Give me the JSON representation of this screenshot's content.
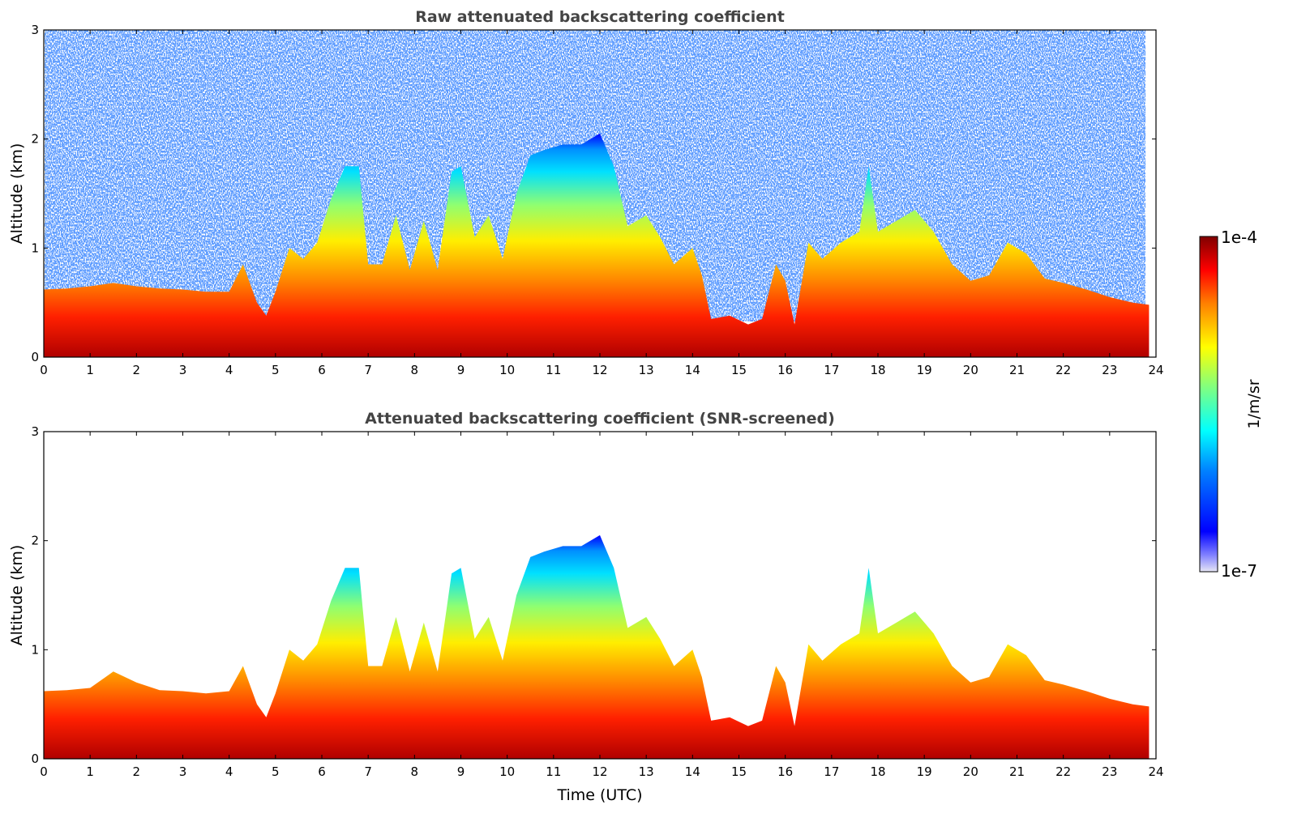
{
  "chart_data": [
    {
      "type": "heatmap",
      "title": "Raw attenuated backscattering coefficient",
      "xlabel": "",
      "ylabel": "Altitude (km)",
      "xlim": [
        0,
        24
      ],
      "ylim": [
        0,
        3
      ],
      "xticks": [
        "0",
        "1",
        "2",
        "3",
        "4",
        "5",
        "6",
        "7",
        "8",
        "9",
        "10",
        "11",
        "12",
        "13",
        "14",
        "15",
        "16",
        "17",
        "18",
        "19",
        "20",
        "21",
        "22",
        "23",
        "24"
      ],
      "yticks": [
        "0",
        "1",
        "2",
        "3"
      ],
      "layer_top_km": [
        [
          0,
          0.62
        ],
        [
          0.5,
          0.63
        ],
        [
          1,
          0.65
        ],
        [
          1.5,
          0.68
        ],
        [
          2,
          0.65
        ],
        [
          2.5,
          0.63
        ],
        [
          3,
          0.62
        ],
        [
          3.5,
          0.6
        ],
        [
          4,
          0.6
        ],
        [
          4.3,
          0.85
        ],
        [
          4.6,
          0.5
        ],
        [
          4.8,
          0.38
        ],
        [
          5,
          0.6
        ],
        [
          5.3,
          1.0
        ],
        [
          5.6,
          0.9
        ],
        [
          5.9,
          1.05
        ],
        [
          6.2,
          1.45
        ],
        [
          6.5,
          1.75
        ],
        [
          6.8,
          1.75
        ],
        [
          7,
          0.85
        ],
        [
          7.3,
          0.85
        ],
        [
          7.6,
          1.3
        ],
        [
          7.9,
          0.8
        ],
        [
          8.2,
          1.25
        ],
        [
          8.5,
          0.8
        ],
        [
          8.8,
          1.7
        ],
        [
          9,
          1.75
        ],
        [
          9.3,
          1.1
        ],
        [
          9.6,
          1.3
        ],
        [
          9.9,
          0.9
        ],
        [
          10.2,
          1.5
        ],
        [
          10.5,
          1.85
        ],
        [
          10.8,
          1.9
        ],
        [
          11.2,
          1.95
        ],
        [
          11.6,
          1.95
        ],
        [
          12,
          2.05
        ],
        [
          12.3,
          1.75
        ],
        [
          12.6,
          1.2
        ],
        [
          13,
          1.3
        ],
        [
          13.3,
          1.1
        ],
        [
          13.6,
          0.85
        ],
        [
          14,
          1.0
        ],
        [
          14.2,
          0.75
        ],
        [
          14.4,
          0.35
        ],
        [
          14.8,
          0.38
        ],
        [
          15.2,
          0.3
        ],
        [
          15.5,
          0.35
        ],
        [
          15.8,
          0.85
        ],
        [
          16,
          0.7
        ],
        [
          16.2,
          0.3
        ],
        [
          16.5,
          1.05
        ],
        [
          16.8,
          0.9
        ],
        [
          17.2,
          1.05
        ],
        [
          17.6,
          1.15
        ],
        [
          17.8,
          1.75
        ],
        [
          18,
          1.15
        ],
        [
          18.4,
          1.25
        ],
        [
          18.8,
          1.35
        ],
        [
          19.2,
          1.15
        ],
        [
          19.6,
          0.85
        ],
        [
          20,
          0.7
        ],
        [
          20.4,
          0.75
        ],
        [
          20.8,
          1.05
        ],
        [
          21.2,
          0.95
        ],
        [
          21.6,
          0.72
        ],
        [
          22,
          0.68
        ],
        [
          22.5,
          0.62
        ],
        [
          23,
          0.55
        ],
        [
          23.5,
          0.5
        ],
        [
          23.85,
          0.48
        ]
      ],
      "colorbar": {
        "label": "1/m/sr",
        "max_label": "1e-4",
        "min_label": "1e-7",
        "scale": "log",
        "colormap": "jet"
      }
    },
    {
      "type": "heatmap",
      "title": "Attenuated backscattering coefficient (SNR-screened)",
      "xlabel": "Time (UTC)",
      "ylabel": "Altitude (km)",
      "xlim": [
        0,
        24
      ],
      "ylim": [
        0,
        3
      ],
      "xticks": [
        "0",
        "1",
        "2",
        "3",
        "4",
        "5",
        "6",
        "7",
        "8",
        "9",
        "10",
        "11",
        "12",
        "13",
        "14",
        "15",
        "16",
        "17",
        "18",
        "19",
        "20",
        "21",
        "22",
        "23",
        "24"
      ],
      "yticks": [
        "0",
        "1",
        "2",
        "3"
      ],
      "layer_top_km": [
        [
          0,
          0.62
        ],
        [
          0.5,
          0.63
        ],
        [
          1,
          0.65
        ],
        [
          1.5,
          0.8
        ],
        [
          2,
          0.7
        ],
        [
          2.5,
          0.63
        ],
        [
          3,
          0.62
        ],
        [
          3.5,
          0.6
        ],
        [
          4,
          0.62
        ],
        [
          4.3,
          0.85
        ],
        [
          4.6,
          0.5
        ],
        [
          4.8,
          0.38
        ],
        [
          5,
          0.6
        ],
        [
          5.3,
          1.0
        ],
        [
          5.6,
          0.9
        ],
        [
          5.9,
          1.05
        ],
        [
          6.2,
          1.45
        ],
        [
          6.5,
          1.75
        ],
        [
          6.8,
          1.75
        ],
        [
          7,
          0.85
        ],
        [
          7.3,
          0.85
        ],
        [
          7.6,
          1.3
        ],
        [
          7.9,
          0.8
        ],
        [
          8.2,
          1.25
        ],
        [
          8.5,
          0.8
        ],
        [
          8.8,
          1.7
        ],
        [
          9,
          1.75
        ],
        [
          9.3,
          1.1
        ],
        [
          9.6,
          1.3
        ],
        [
          9.9,
          0.9
        ],
        [
          10.2,
          1.5
        ],
        [
          10.5,
          1.85
        ],
        [
          10.8,
          1.9
        ],
        [
          11.2,
          1.95
        ],
        [
          11.6,
          1.95
        ],
        [
          12,
          2.05
        ],
        [
          12.3,
          1.75
        ],
        [
          12.6,
          1.2
        ],
        [
          13,
          1.3
        ],
        [
          13.3,
          1.1
        ],
        [
          13.6,
          0.85
        ],
        [
          14,
          1.0
        ],
        [
          14.2,
          0.75
        ],
        [
          14.4,
          0.35
        ],
        [
          14.8,
          0.38
        ],
        [
          15.2,
          0.3
        ],
        [
          15.5,
          0.35
        ],
        [
          15.8,
          0.85
        ],
        [
          16,
          0.7
        ],
        [
          16.2,
          0.3
        ],
        [
          16.5,
          1.05
        ],
        [
          16.8,
          0.9
        ],
        [
          17.2,
          1.05
        ],
        [
          17.6,
          1.15
        ],
        [
          17.8,
          1.75
        ],
        [
          18,
          1.15
        ],
        [
          18.4,
          1.25
        ],
        [
          18.8,
          1.35
        ],
        [
          19.2,
          1.15
        ],
        [
          19.6,
          0.85
        ],
        [
          20,
          0.7
        ],
        [
          20.4,
          0.75
        ],
        [
          20.8,
          1.05
        ],
        [
          21.2,
          0.95
        ],
        [
          21.6,
          0.72
        ],
        [
          22,
          0.68
        ],
        [
          22.5,
          0.62
        ],
        [
          23,
          0.55
        ],
        [
          23.5,
          0.5
        ],
        [
          23.85,
          0.48
        ]
      ],
      "colorbar": {
        "label": "1/m/sr",
        "max_label": "1e-4",
        "min_label": "1e-7",
        "scale": "log",
        "colormap": "jet"
      }
    }
  ],
  "colors": {
    "title": "#444444",
    "jet": [
      "#00008f",
      "#0000ff",
      "#0080ff",
      "#00ffff",
      "#80ff80",
      "#ffff00",
      "#ff8000",
      "#ff0000",
      "#800000"
    ]
  }
}
